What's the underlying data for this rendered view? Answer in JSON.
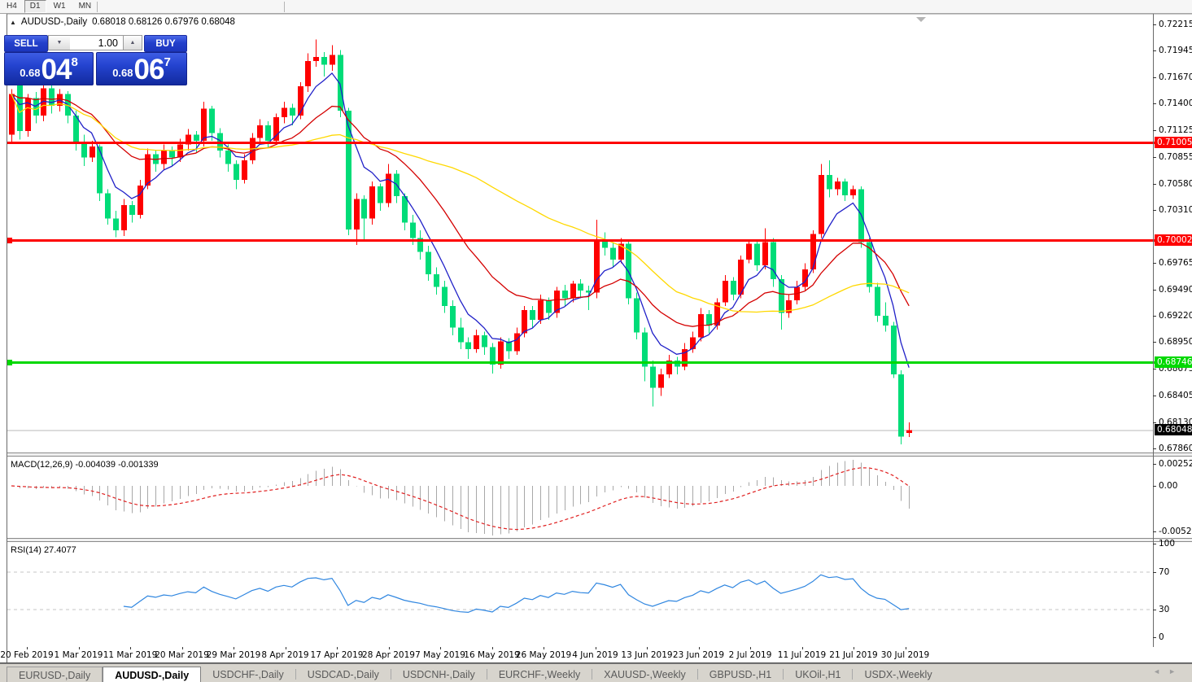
{
  "toolbar": {
    "timeframes": [
      {
        "label": "H4",
        "active": false
      },
      {
        "label": "D1",
        "active": true
      },
      {
        "label": "W1",
        "active": false
      },
      {
        "label": "MN",
        "active": false
      }
    ]
  },
  "chart_header": {
    "collapse_icon": "▲",
    "symbol": "AUDUSD-,Daily",
    "ohlc": "0.68018 0.68126 0.67976 0.68048"
  },
  "trade_panel": {
    "sell_label": "SELL",
    "buy_label": "BUY",
    "volume": "1.00",
    "spinner_down_icon": "▼",
    "spinner_up_icon": "▲",
    "accent_color": "#2443cf",
    "sell_price": {
      "prefix": "0.68",
      "big": "04",
      "sup": "8"
    },
    "buy_price": {
      "prefix": "0.68",
      "big": "06",
      "sup": "7"
    }
  },
  "indicator_labels": {
    "macd": "MACD(12,26,9) -0.004039 -0.001339",
    "rsi": "RSI(14) 27.4077"
  },
  "chart_data": {
    "type": "candlestick",
    "title": "AUDUSD-,Daily",
    "conventions": {
      "bull_color": "#fe0000",
      "bear_color": "#00dc78",
      "note": "red body = close>=open (up), green body = close<open (down)"
    },
    "x_labels": [
      "20 Feb 2019",
      "1 Mar 2019",
      "11 Mar 2019",
      "20 Mar 2019",
      "29 Mar 2019",
      "8 Apr 2019",
      "17 Apr 2019",
      "28 Apr 2019",
      "7 May 2019",
      "16 May 2019",
      "26 May 2019",
      "4 Jun 2019",
      "13 Jun 2019",
      "23 Jun 2019",
      "2 Jul 2019",
      "11 Jul 2019",
      "21 Jul 2019",
      "30 Jul 2019"
    ],
    "price_axis_labels": [
      "0.72215",
      "0.71945",
      "0.71670",
      "0.71400",
      "0.71125",
      "0.70855",
      "0.70580",
      "0.70310",
      "0.69765",
      "0.69490",
      "0.69220",
      "0.68950",
      "0.68675",
      "0.68405",
      "0.68130",
      "0.67860"
    ],
    "price_axis_range": {
      "top": 0.72215,
      "bottom": 0.6786
    },
    "h_lines": [
      {
        "price": 0.71005,
        "label": "0.71005",
        "color": "#fe0000",
        "thickness": 3,
        "handle": false
      },
      {
        "price": 0.70002,
        "label": "0.70002",
        "color": "#fe0000",
        "thickness": 3,
        "handle": true
      },
      {
        "price": 0.68746,
        "label": "0.68746",
        "color": "#00d800",
        "thickness": 3,
        "handle": true
      }
    ],
    "current_price": {
      "value": 0.68048,
      "label": "0.68048",
      "line_color": "#b9b9b9",
      "badge_color": "#000000"
    },
    "moving_averages": [
      {
        "type": "ema",
        "period": 6,
        "color": "#2020c8",
        "name": "fast-ma-blue"
      },
      {
        "type": "ema",
        "period": 18,
        "color": "#d40000",
        "name": "mid-ma-red"
      },
      {
        "type": "sma",
        "period": 42,
        "color": "#ffd800",
        "name": "slow-ma-yellow"
      }
    ],
    "candles": [
      [
        0.7108,
        0.7155,
        0.71,
        0.715
      ],
      [
        0.7177,
        0.7182,
        0.7103,
        0.7112
      ],
      [
        0.7112,
        0.715,
        0.7106,
        0.7146
      ],
      [
        0.7146,
        0.7152,
        0.712,
        0.7128
      ],
      [
        0.7128,
        0.7168,
        0.7122,
        0.7156
      ],
      [
        0.7156,
        0.716,
        0.713,
        0.7138
      ],
      [
        0.7138,
        0.7155,
        0.7132,
        0.715
      ],
      [
        0.715,
        0.7153,
        0.712,
        0.7128
      ],
      [
        0.7128,
        0.7133,
        0.7092,
        0.71
      ],
      [
        0.71,
        0.7108,
        0.7076,
        0.7085
      ],
      [
        0.7085,
        0.7102,
        0.708,
        0.7096
      ],
      [
        0.7096,
        0.7098,
        0.704,
        0.7048
      ],
      [
        0.7048,
        0.7052,
        0.7016,
        0.7022
      ],
      [
        0.7022,
        0.703,
        0.7003,
        0.701
      ],
      [
        0.701,
        0.7042,
        0.7004,
        0.7036
      ],
      [
        0.7036,
        0.704,
        0.7018,
        0.7026
      ],
      [
        0.7026,
        0.7062,
        0.7022,
        0.7056
      ],
      [
        0.7056,
        0.7094,
        0.7052,
        0.7088
      ],
      [
        0.7088,
        0.7092,
        0.707,
        0.7078
      ],
      [
        0.7078,
        0.7098,
        0.7072,
        0.7092
      ],
      [
        0.7092,
        0.7096,
        0.7076,
        0.7085
      ],
      [
        0.7085,
        0.7104,
        0.708,
        0.7098
      ],
      [
        0.7098,
        0.7114,
        0.7092,
        0.7108
      ],
      [
        0.7108,
        0.7112,
        0.709,
        0.7102
      ],
      [
        0.7102,
        0.7142,
        0.7096,
        0.7135
      ],
      [
        0.7135,
        0.7138,
        0.7102,
        0.711
      ],
      [
        0.711,
        0.7115,
        0.7085,
        0.7092
      ],
      [
        0.7092,
        0.7098,
        0.707,
        0.7078
      ],
      [
        0.7078,
        0.7082,
        0.7052,
        0.7062
      ],
      [
        0.7062,
        0.7088,
        0.7058,
        0.7082
      ],
      [
        0.7082,
        0.711,
        0.7078,
        0.7105
      ],
      [
        0.7105,
        0.7124,
        0.71,
        0.7118
      ],
      [
        0.7118,
        0.7122,
        0.7095,
        0.7102
      ],
      [
        0.7102,
        0.713,
        0.7098,
        0.7126
      ],
      [
        0.7126,
        0.7142,
        0.712,
        0.7136
      ],
      [
        0.7136,
        0.714,
        0.7118,
        0.7128
      ],
      [
        0.7128,
        0.7162,
        0.7124,
        0.7158
      ],
      [
        0.7158,
        0.7192,
        0.7152,
        0.7184
      ],
      [
        0.7184,
        0.7206,
        0.7178,
        0.7188
      ],
      [
        0.7188,
        0.7193,
        0.7168,
        0.718
      ],
      [
        0.718,
        0.72,
        0.7174,
        0.719
      ],
      [
        0.719,
        0.7195,
        0.7126,
        0.7133
      ],
      [
        0.7133,
        0.7136,
        0.7005,
        0.7011
      ],
      [
        0.7011,
        0.7048,
        0.6995,
        0.7042
      ],
      [
        0.7042,
        0.7046,
        0.7,
        0.7022
      ],
      [
        0.7022,
        0.706,
        0.7016,
        0.7055
      ],
      [
        0.7055,
        0.7058,
        0.703,
        0.7038
      ],
      [
        0.7038,
        0.7078,
        0.7034,
        0.7068
      ],
      [
        0.7068,
        0.7072,
        0.7038,
        0.7045
      ],
      [
        0.7045,
        0.7048,
        0.701,
        0.7018
      ],
      [
        0.7018,
        0.7026,
        0.6995,
        0.7002
      ],
      [
        0.7002,
        0.701,
        0.698,
        0.6988
      ],
      [
        0.6988,
        0.6994,
        0.6958,
        0.6965
      ],
      [
        0.6965,
        0.6972,
        0.6944,
        0.6952
      ],
      [
        0.6952,
        0.6958,
        0.6925,
        0.6932
      ],
      [
        0.6932,
        0.6938,
        0.6902,
        0.691
      ],
      [
        0.691,
        0.692,
        0.6888,
        0.6895
      ],
      [
        0.6895,
        0.69,
        0.6878,
        0.6888
      ],
      [
        0.6888,
        0.6908,
        0.6884,
        0.6902
      ],
      [
        0.6902,
        0.6906,
        0.6882,
        0.689
      ],
      [
        0.689,
        0.6894,
        0.6863,
        0.6872
      ],
      [
        0.6872,
        0.69,
        0.6868,
        0.6896
      ],
      [
        0.6896,
        0.6899,
        0.6878,
        0.6886
      ],
      [
        0.6886,
        0.691,
        0.6882,
        0.6904
      ],
      [
        0.6904,
        0.6932,
        0.69,
        0.6928
      ],
      [
        0.6928,
        0.6932,
        0.691,
        0.6918
      ],
      [
        0.6918,
        0.6944,
        0.6914,
        0.6938
      ],
      [
        0.6938,
        0.6941,
        0.6918,
        0.6925
      ],
      [
        0.6925,
        0.6952,
        0.692,
        0.6948
      ],
      [
        0.6948,
        0.6954,
        0.6932,
        0.694
      ],
      [
        0.694,
        0.6958,
        0.6936,
        0.6955
      ],
      [
        0.6955,
        0.696,
        0.694,
        0.6948
      ],
      [
        0.6948,
        0.6953,
        0.6928,
        0.6946
      ],
      [
        0.6946,
        0.7021,
        0.694,
        0.7
      ],
      [
        0.7,
        0.7008,
        0.6984,
        0.6992
      ],
      [
        0.6992,
        0.6998,
        0.6972,
        0.698
      ],
      [
        0.698,
        0.7002,
        0.6976,
        0.6996
      ],
      [
        0.6996,
        0.6999,
        0.6934,
        0.694
      ],
      [
        0.694,
        0.6946,
        0.6898,
        0.6905
      ],
      [
        0.6905,
        0.691,
        0.6855,
        0.687
      ],
      [
        0.687,
        0.6876,
        0.6829,
        0.6848
      ],
      [
        0.6848,
        0.6868,
        0.684,
        0.6862
      ],
      [
        0.6862,
        0.6882,
        0.6858,
        0.6876
      ],
      [
        0.6876,
        0.688,
        0.6862,
        0.687
      ],
      [
        0.687,
        0.6894,
        0.6866,
        0.6888
      ],
      [
        0.6888,
        0.6906,
        0.6884,
        0.69
      ],
      [
        0.69,
        0.693,
        0.6896,
        0.6924
      ],
      [
        0.6924,
        0.6928,
        0.6904,
        0.6912
      ],
      [
        0.6912,
        0.694,
        0.6908,
        0.6936
      ],
      [
        0.6936,
        0.6964,
        0.6932,
        0.6958
      ],
      [
        0.6958,
        0.6962,
        0.6938,
        0.6944
      ],
      [
        0.6944,
        0.6984,
        0.694,
        0.698
      ],
      [
        0.698,
        0.7,
        0.6976,
        0.6996
      ],
      [
        0.6996,
        0.7,
        0.6968,
        0.6974
      ],
      [
        0.6974,
        0.7012,
        0.697,
        0.6998
      ],
      [
        0.6998,
        0.7002,
        0.6952,
        0.696
      ],
      [
        0.696,
        0.6964,
        0.6908,
        0.6925
      ],
      [
        0.6925,
        0.6944,
        0.692,
        0.6938
      ],
      [
        0.6938,
        0.6958,
        0.6934,
        0.6952
      ],
      [
        0.6952,
        0.6976,
        0.6948,
        0.697
      ],
      [
        0.697,
        0.701,
        0.6966,
        0.7006
      ],
      [
        0.7006,
        0.7078,
        0.7002,
        0.7067
      ],
      [
        0.7067,
        0.7082,
        0.7044,
        0.7052
      ],
      [
        0.7052,
        0.7064,
        0.7046,
        0.706
      ],
      [
        0.706,
        0.7063,
        0.704,
        0.7046
      ],
      [
        0.7046,
        0.7056,
        0.7042,
        0.7052
      ],
      [
        0.7052,
        0.7055,
        0.6992,
        0.6998
      ],
      [
        0.6998,
        0.7002,
        0.6946,
        0.6952
      ],
      [
        0.6952,
        0.6956,
        0.6916,
        0.6922
      ],
      [
        0.6922,
        0.6936,
        0.6906,
        0.6912
      ],
      [
        0.6912,
        0.6916,
        0.6858,
        0.6862
      ],
      [
        0.6862,
        0.6866,
        0.679,
        0.6798
      ],
      [
        0.68018,
        0.68126,
        0.67976,
        0.68048
      ]
    ],
    "macd": {
      "params": [
        12,
        26,
        9
      ],
      "main_value": -0.004039,
      "signal_value": -0.001339,
      "axis_labels": [
        "0.002522",
        "0.00",
        "-0.005234"
      ],
      "axis_range": {
        "top": 0.002522,
        "bottom": -0.005234
      },
      "hist_color": "#a8a8a8",
      "signal_color": "#e02020"
    },
    "rsi": {
      "period": 14,
      "value": 27.4077,
      "levels": [
        70,
        30
      ],
      "axis_labels": [
        "100",
        "70",
        "30",
        "0"
      ],
      "line_color": "#2f86e0",
      "level_color": "#c4c4c4"
    }
  },
  "tab_bar": {
    "tabs": [
      "EURUSD-,Daily",
      "AUDUSD-,Daily",
      "USDCHF-,Daily",
      "USDCAD-,Daily",
      "USDCNH-,Daily",
      "EURCHF-,Weekly",
      "XAUUSD-,Weekly",
      "GBPUSD-,H1",
      "UKOil-,H1",
      "USDX-,Weekly"
    ],
    "active_index": 1,
    "left_arrow_icon": "◄",
    "right_arrow_icon": "►"
  }
}
